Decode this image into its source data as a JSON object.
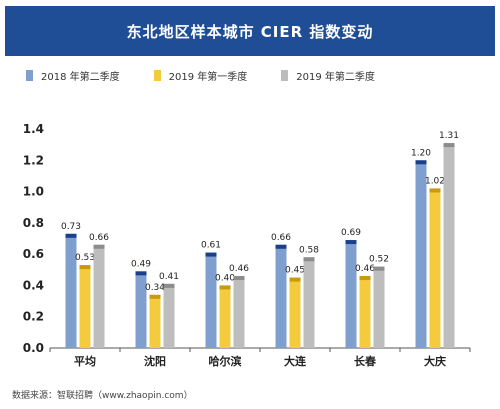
{
  "source_note": "数据来源：智联招聘（www.zhaopin.com）",
  "colors": {
    "title_bg": "#1f4d96",
    "series": [
      "#7f9fcf",
      "#f4cb3c",
      "#bdbdbd"
    ],
    "cap": [
      "#1b3f8a",
      "#c99a10",
      "#8c8c8c"
    ]
  },
  "chart_data": {
    "type": "bar",
    "title": "东北地区样本城市 CIER 指数变动",
    "categories": [
      "平均",
      "沈阳",
      "哈尔滨",
      "大连",
      "长春",
      "大庆"
    ],
    "series": [
      {
        "name": "2018 年第二季度",
        "values": [
          0.73,
          0.49,
          0.61,
          0.66,
          0.69,
          1.2
        ],
        "labels": [
          "0.73",
          "0.49",
          "0.61",
          "0.66",
          "0.69",
          "1.20"
        ]
      },
      {
        "name": "2019 年第一季度",
        "values": [
          0.53,
          0.34,
          0.4,
          0.45,
          0.46,
          1.02
        ],
        "labels": [
          "0.53",
          "0.34",
          "0.40",
          "0.45",
          "0.46",
          "1.02"
        ]
      },
      {
        "name": "2019 年第二季度",
        "values": [
          0.66,
          0.41,
          0.46,
          0.58,
          0.52,
          1.31
        ],
        "labels": [
          "0.66",
          "0.41",
          "0.46",
          "0.58",
          "0.52",
          "1.31"
        ]
      }
    ],
    "yticks": [
      "0.0",
      "0.2",
      "0.4",
      "0.6",
      "0.8",
      "1.0",
      "1.2",
      "1.4"
    ],
    "ylim": [
      0,
      1.4
    ],
    "grid": false,
    "legend_position": "top-left"
  }
}
